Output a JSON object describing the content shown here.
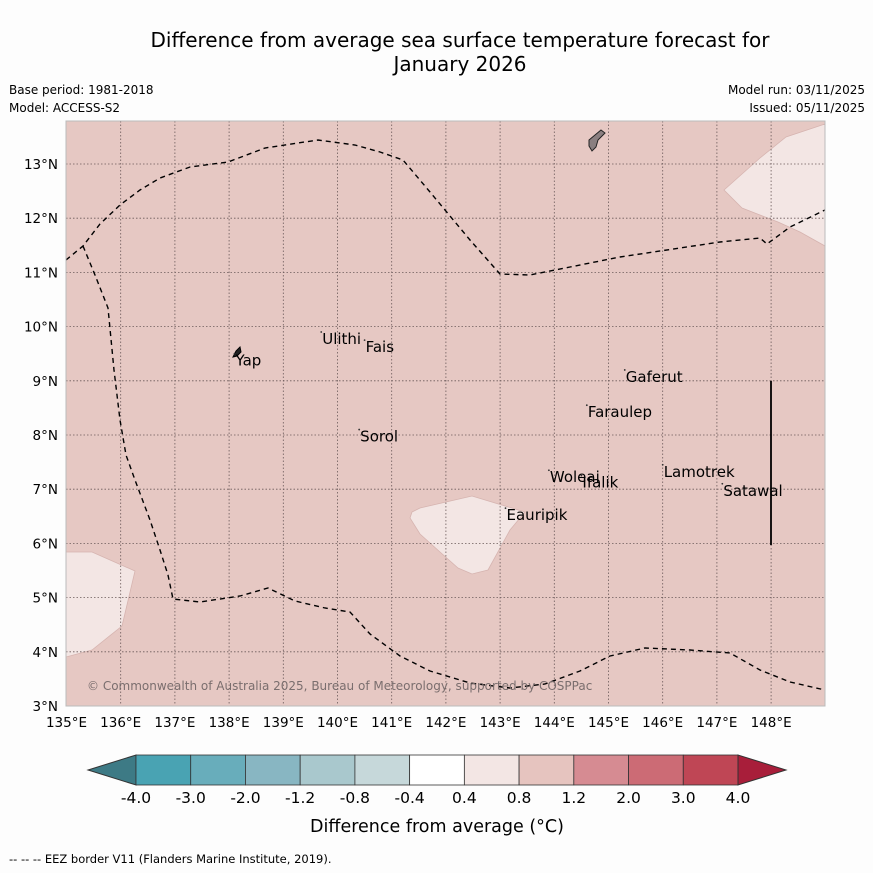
{
  "title": "Difference from average sea surface temperature forecast for January 2026",
  "title_line1": "Difference from average sea surface temperature forecast for",
  "title_line2": "January 2026",
  "meta": {
    "base_period": "Base period: 1981-2018",
    "model": "Model: ACCESS-S2",
    "model_run": "Model run: 03/11/2025",
    "issued": "Issued: 05/11/2025"
  },
  "map": {
    "lon_range": [
      135,
      149
    ],
    "lat_range": [
      3,
      13.8
    ],
    "lon_ticks": [
      "135°E",
      "136°E",
      "137°E",
      "138°E",
      "139°E",
      "140°E",
      "141°E",
      "142°E",
      "143°E",
      "144°E",
      "145°E",
      "146°E",
      "147°E",
      "148°E"
    ],
    "lat_ticks": [
      "3°N",
      "4°N",
      "5°N",
      "6°N",
      "7°N",
      "8°N",
      "9°N",
      "10°N",
      "11°N",
      "12°N",
      "13°N"
    ],
    "background_category": "0.8 to 1.2",
    "islands": [
      {
        "name": "Yap",
        "lon": 138.1,
        "lat": 9.5
      },
      {
        "name": "Ulithi",
        "lon": 139.7,
        "lat": 9.9
      },
      {
        "name": "Fais",
        "lon": 140.5,
        "lat": 9.75
      },
      {
        "name": "Sorol",
        "lon": 140.4,
        "lat": 8.1
      },
      {
        "name": "Gaferut",
        "lon": 145.3,
        "lat": 9.2
      },
      {
        "name": "Faraulep",
        "lon": 144.6,
        "lat": 8.55
      },
      {
        "name": "Lamotrek",
        "lon": 146.0,
        "lat": 7.45
      },
      {
        "name": "Satawal",
        "lon": 147.1,
        "lat": 7.1
      },
      {
        "name": "Woleai",
        "lon": 143.9,
        "lat": 7.35
      },
      {
        "name": "Ifalik",
        "lon": 144.5,
        "lat": 7.25
      },
      {
        "name": "Eauripik",
        "lon": 143.1,
        "lat": 6.65
      }
    ],
    "copyright": "© Commonwealth of Australia 2025, Bureau of Meteorology, supported by COSPPac"
  },
  "colorbar": {
    "label": "Difference from average (°C)",
    "ticks": [
      "-4.0",
      "-3.0",
      "-2.0",
      "-1.2",
      "-0.8",
      "-0.4",
      "0.4",
      "0.8",
      "1.2",
      "2.0",
      "3.0",
      "4.0"
    ],
    "colors": [
      "#3d7a85",
      "#49a3b3",
      "#68adbb",
      "#88b6c2",
      "#a9c8cd",
      "#c6d8da",
      "#ffffff",
      "#f3e6e4",
      "#e6c4bf",
      "#d68b92",
      "#cc6b75",
      "#bf4655",
      "#a81e3a"
    ]
  },
  "footnote": "--  --  -- EEZ border V11 (Flanders Marine Institute, 2019)."
}
